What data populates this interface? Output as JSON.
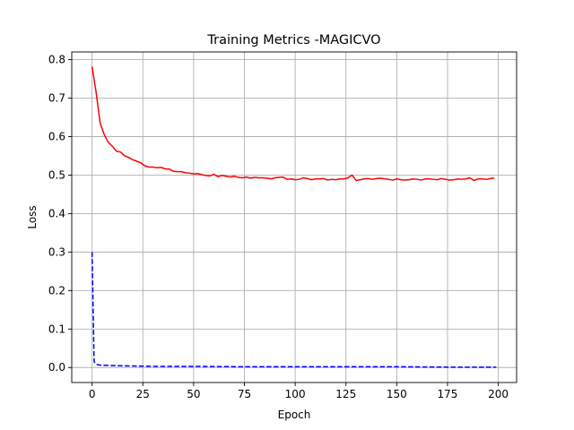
{
  "chart_data": {
    "type": "line",
    "title": "Training Metrics -MAGICVO",
    "xlabel": "Epoch",
    "ylabel": "Loss",
    "xlim": [
      -10,
      209
    ],
    "ylim": [
      -0.039,
      0.82
    ],
    "xticks": [
      0,
      25,
      50,
      75,
      100,
      125,
      150,
      175,
      200
    ],
    "yticks": [
      0.0,
      0.1,
      0.2,
      0.3,
      0.4,
      0.5,
      0.6,
      0.7,
      0.8
    ],
    "grid": true,
    "legend": "none",
    "series": [
      {
        "color": "#ff0000",
        "style": "solid",
        "x": [
          0,
          2,
          4,
          6,
          8,
          10,
          12,
          14,
          16,
          18,
          20,
          22,
          24,
          26,
          28,
          30,
          32,
          34,
          36,
          38,
          40,
          42,
          44,
          46,
          48,
          50,
          52,
          54,
          56,
          58,
          60,
          62,
          64,
          66,
          68,
          70,
          72,
          74,
          76,
          78,
          80,
          82,
          84,
          86,
          88,
          90,
          92,
          94,
          96,
          98,
          100,
          102,
          104,
          106,
          108,
          110,
          112,
          114,
          116,
          118,
          120,
          122,
          124,
          126,
          128,
          130,
          132,
          134,
          136,
          138,
          140,
          142,
          144,
          146,
          148,
          150,
          152,
          154,
          156,
          158,
          160,
          162,
          164,
          166,
          168,
          170,
          172,
          174,
          176,
          178,
          180,
          182,
          184,
          186,
          188,
          190,
          192,
          194,
          196,
          198
        ],
        "values": [
          0.782,
          0.715,
          0.635,
          0.605,
          0.585,
          0.575,
          0.562,
          0.56,
          0.55,
          0.546,
          0.54,
          0.536,
          0.532,
          0.524,
          0.521,
          0.521,
          0.519,
          0.52,
          0.516,
          0.516,
          0.51,
          0.509,
          0.509,
          0.506,
          0.505,
          0.503,
          0.504,
          0.501,
          0.499,
          0.498,
          0.502,
          0.496,
          0.499,
          0.497,
          0.495,
          0.497,
          0.494,
          0.493,
          0.495,
          0.492,
          0.494,
          0.493,
          0.493,
          0.492,
          0.49,
          0.493,
          0.494,
          0.495,
          0.489,
          0.49,
          0.488,
          0.489,
          0.493,
          0.491,
          0.488,
          0.49,
          0.49,
          0.491,
          0.487,
          0.489,
          0.488,
          0.49,
          0.49,
          0.493,
          0.5,
          0.486,
          0.488,
          0.49,
          0.491,
          0.489,
          0.491,
          0.492,
          0.49,
          0.489,
          0.487,
          0.49,
          0.488,
          0.487,
          0.488,
          0.49,
          0.489,
          0.487,
          0.49,
          0.49,
          0.489,
          0.488,
          0.491,
          0.489,
          0.487,
          0.488,
          0.49,
          0.489,
          0.49,
          0.493,
          0.486,
          0.49,
          0.49,
          0.489,
          0.491,
          0.493
        ]
      },
      {
        "color": "#0000ff",
        "style": "dashed",
        "x": [
          0,
          1,
          2,
          3,
          5,
          10,
          20,
          30,
          50,
          75,
          100,
          125,
          150,
          175,
          199
        ],
        "values": [
          0.3,
          0.015,
          0.009,
          0.007,
          0.006,
          0.005,
          0.004,
          0.003,
          0.003,
          0.002,
          0.002,
          0.002,
          0.002,
          0.001,
          0.001
        ]
      }
    ]
  }
}
